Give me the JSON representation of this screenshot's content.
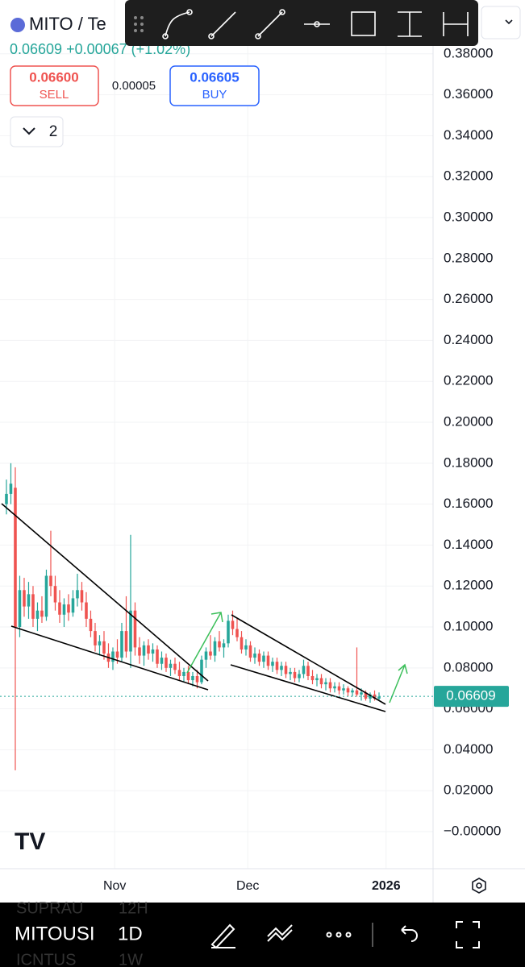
{
  "header": {
    "symbol": "MITO / Te",
    "quote": "0.06609 +0.00067 (+1.02%)",
    "sell_price": "0.06600",
    "sell_label": "SELL",
    "spread": "0.00005",
    "buy_price": "0.06605",
    "buy_label": "BUY",
    "drawings_count": "2"
  },
  "bottom_bar": {
    "symbol": "MITOUSI",
    "interval": "1D",
    "ghost_symbol_1": "SUPRAU",
    "ghost_interval_1": "12H",
    "ghost_symbol_2": "ICNTUS",
    "ghost_interval_2": "1W"
  },
  "chart_data": {
    "type": "candlestick",
    "up_color": "#26a69a",
    "down_color": "#ef5350",
    "grid": true,
    "ylim": [
      -0.0181,
      0.4063
    ],
    "yticks": [
      {
        "value": 0.38,
        "label": "0.38000"
      },
      {
        "value": 0.36,
        "label": "0.36000"
      },
      {
        "value": 0.34,
        "label": "0.34000"
      },
      {
        "value": 0.32,
        "label": "0.32000"
      },
      {
        "value": 0.3,
        "label": "0.30000"
      },
      {
        "value": 0.28,
        "label": "0.28000"
      },
      {
        "value": 0.26,
        "label": "0.26000"
      },
      {
        "value": 0.24,
        "label": "0.24000"
      },
      {
        "value": 0.22,
        "label": "0.22000"
      },
      {
        "value": 0.2,
        "label": "0.20000"
      },
      {
        "value": 0.18,
        "label": "0.18000"
      },
      {
        "value": 0.16,
        "label": "0.16000"
      },
      {
        "value": 0.14,
        "label": "0.14000"
      },
      {
        "value": 0.12,
        "label": "0.12000"
      },
      {
        "value": 0.1,
        "label": "0.10000"
      },
      {
        "value": 0.08,
        "label": "0.08000"
      },
      {
        "value": 0.06,
        "label": "0.06000"
      },
      {
        "value": 0.04,
        "label": "0.04000"
      },
      {
        "value": 0.02,
        "label": "0.02000"
      },
      {
        "value": 0,
        "label": "−0.00000"
      }
    ],
    "xlim": [
      -1.45,
      96.18
    ],
    "xticks": [
      {
        "value": 24.4,
        "label": "Nov"
      },
      {
        "value": 54.4,
        "label": "Dec"
      },
      {
        "value": 85.6,
        "label": "2026"
      }
    ],
    "last_price": {
      "value": 0.06609,
      "label": "0.06609"
    },
    "open": [
      0.16,
      0.165,
      0.168,
      0.1,
      0.118,
      0.11,
      0.116,
      0.104,
      0.108,
      0.105,
      0.125,
      0.12,
      0.112,
      0.106,
      0.111,
      0.107,
      0.114,
      0.118,
      0.112,
      0.104,
      0.098,
      0.091,
      0.093,
      0.087,
      0.083,
      0.088,
      0.085,
      0.098,
      0.088,
      0.108,
      0.09,
      0.086,
      0.091,
      0.087,
      0.089,
      0.082,
      0.085,
      0.08,
      0.082,
      0.079,
      0.076,
      0.078,
      0.074,
      0.076,
      0.073,
      0.084,
      0.088,
      0.086,
      0.093,
      0.09,
      0.092,
      0.103,
      0.099,
      0.095,
      0.089,
      0.091,
      0.085,
      0.087,
      0.083,
      0.086,
      0.081,
      0.083,
      0.079,
      0.081,
      0.077,
      0.078,
      0.075,
      0.077,
      0.081,
      0.076,
      0.074,
      0.075,
      0.072,
      0.073,
      0.07,
      0.071,
      0.069,
      0.07,
      0.068,
      0.069,
      0.067,
      0.068,
      0.065,
      0.067,
      0.065
    ],
    "high": [
      0.172,
      0.18,
      0.178,
      0.125,
      0.124,
      0.122,
      0.12,
      0.112,
      0.115,
      0.128,
      0.147,
      0.125,
      0.118,
      0.114,
      0.116,
      0.118,
      0.126,
      0.122,
      0.117,
      0.108,
      0.102,
      0.096,
      0.098,
      0.092,
      0.09,
      0.094,
      0.102,
      0.115,
      0.145,
      0.112,
      0.095,
      0.093,
      0.094,
      0.092,
      0.091,
      0.088,
      0.087,
      0.084,
      0.085,
      0.083,
      0.08,
      0.081,
      0.078,
      0.079,
      0.086,
      0.09,
      0.096,
      0.095,
      0.098,
      0.094,
      0.106,
      0.108,
      0.104,
      0.098,
      0.094,
      0.093,
      0.09,
      0.089,
      0.088,
      0.088,
      0.085,
      0.085,
      0.083,
      0.083,
      0.08,
      0.08,
      0.079,
      0.084,
      0.083,
      0.079,
      0.077,
      0.077,
      0.075,
      0.075,
      0.073,
      0.073,
      0.072,
      0.071,
      0.07,
      0.09,
      0.07,
      0.069,
      0.068,
      0.069,
      0.068
    ],
    "low": [
      0.155,
      0.16,
      0.03,
      0.095,
      0.105,
      0.104,
      0.1,
      0.098,
      0.102,
      0.103,
      0.115,
      0.108,
      0.102,
      0.1,
      0.103,
      0.105,
      0.11,
      0.108,
      0.1,
      0.095,
      0.088,
      0.086,
      0.084,
      0.08,
      0.079,
      0.082,
      0.083,
      0.085,
      0.08,
      0.086,
      0.082,
      0.081,
      0.084,
      0.083,
      0.08,
      0.079,
      0.078,
      0.076,
      0.077,
      0.074,
      0.073,
      0.072,
      0.071,
      0.07,
      0.072,
      0.08,
      0.084,
      0.083,
      0.088,
      0.085,
      0.09,
      0.096,
      0.093,
      0.087,
      0.086,
      0.083,
      0.082,
      0.081,
      0.08,
      0.079,
      0.078,
      0.077,
      0.076,
      0.075,
      0.074,
      0.073,
      0.073,
      0.075,
      0.074,
      0.072,
      0.071,
      0.07,
      0.069,
      0.068,
      0.068,
      0.067,
      0.067,
      0.066,
      0.066,
      0.066,
      0.064,
      0.064,
      0.063,
      0.064,
      0.064
    ],
    "close": [
      0.165,
      0.17,
      0.1,
      0.118,
      0.11,
      0.116,
      0.104,
      0.108,
      0.105,
      0.125,
      0.12,
      0.112,
      0.106,
      0.111,
      0.107,
      0.114,
      0.118,
      0.112,
      0.104,
      0.098,
      0.091,
      0.093,
      0.087,
      0.083,
      0.088,
      0.085,
      0.098,
      0.088,
      0.108,
      0.09,
      0.086,
      0.091,
      0.087,
      0.089,
      0.082,
      0.085,
      0.08,
      0.082,
      0.079,
      0.076,
      0.078,
      0.074,
      0.076,
      0.073,
      0.084,
      0.088,
      0.086,
      0.093,
      0.09,
      0.092,
      0.103,
      0.099,
      0.095,
      0.089,
      0.091,
      0.085,
      0.087,
      0.083,
      0.086,
      0.081,
      0.083,
      0.079,
      0.081,
      0.077,
      0.078,
      0.075,
      0.077,
      0.081,
      0.076,
      0.074,
      0.075,
      0.072,
      0.073,
      0.07,
      0.071,
      0.069,
      0.07,
      0.068,
      0.069,
      0.067,
      0.068,
      0.065,
      0.067,
      0.065,
      0.066
    ]
  }
}
